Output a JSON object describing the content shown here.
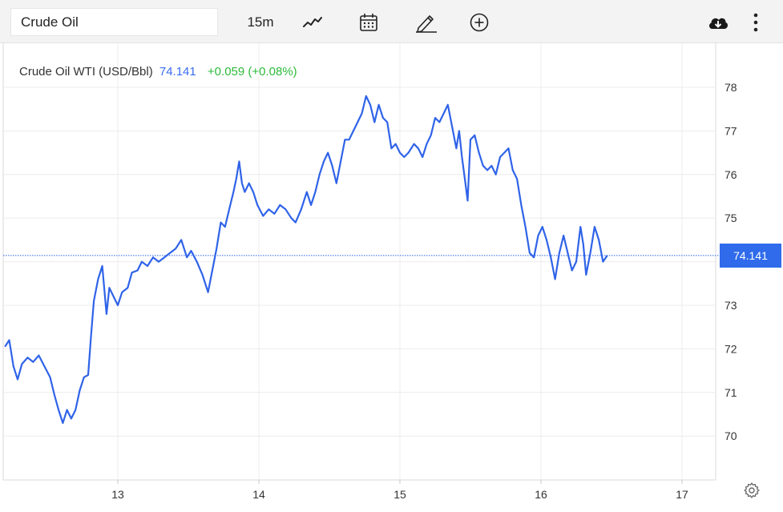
{
  "toolbar": {
    "search_value": "Crude Oil",
    "interval": "15m",
    "icons": [
      "line-chart-icon",
      "calendar-icon",
      "pencil-icon",
      "plus-circle-icon",
      "download-cloud-icon",
      "more-vertical-icon"
    ]
  },
  "legend": {
    "name": "Crude Oil WTI (USD/Bbl)",
    "price": "74.141",
    "change": "+0.059 (+0.08%)"
  },
  "colors": {
    "line": "#2f63e8",
    "change_up": "#2dba3a",
    "price_tag": "#2f6bea",
    "grid": "#ececec"
  },
  "chart_data": {
    "type": "line",
    "title": "",
    "xlabel": "",
    "ylabel": "",
    "x_ticks": [
      "13",
      "14",
      "15",
      "16",
      "17"
    ],
    "y_ticks": [
      "70",
      "71",
      "72",
      "73",
      "74",
      "75",
      "76",
      "77",
      "78"
    ],
    "xlim": [
      12.2,
      17.25
    ],
    "ylim": [
      69.0,
      79.0
    ],
    "grid": true,
    "last_value": 74.141,
    "last_value_label": "74.141",
    "series": [
      {
        "values": [
          [
            12.2,
            72.05
          ],
          [
            12.23,
            72.2
          ],
          [
            12.26,
            71.6
          ],
          [
            12.29,
            71.3
          ],
          [
            12.32,
            71.65
          ],
          [
            12.36,
            71.8
          ],
          [
            12.4,
            71.7
          ],
          [
            12.44,
            71.85
          ],
          [
            12.48,
            71.6
          ],
          [
            12.52,
            71.35
          ],
          [
            12.55,
            70.95
          ],
          [
            12.58,
            70.6
          ],
          [
            12.61,
            70.3
          ],
          [
            12.64,
            70.6
          ],
          [
            12.67,
            70.4
          ],
          [
            12.7,
            70.6
          ],
          [
            12.73,
            71.05
          ],
          [
            12.76,
            71.35
          ],
          [
            12.79,
            71.4
          ],
          [
            12.81,
            72.3
          ],
          [
            12.83,
            73.1
          ],
          [
            12.86,
            73.6
          ],
          [
            12.89,
            73.9
          ],
          [
            12.92,
            72.8
          ],
          [
            12.94,
            73.4
          ],
          [
            12.97,
            73.2
          ],
          [
            13.0,
            73.0
          ],
          [
            13.03,
            73.3
          ],
          [
            13.07,
            73.4
          ],
          [
            13.1,
            73.75
          ],
          [
            13.14,
            73.8
          ],
          [
            13.17,
            74.0
          ],
          [
            13.21,
            73.9
          ],
          [
            13.25,
            74.1
          ],
          [
            13.29,
            74.0
          ],
          [
            13.33,
            74.1
          ],
          [
            13.37,
            74.2
          ],
          [
            13.41,
            74.3
          ],
          [
            13.45,
            74.5
          ],
          [
            13.49,
            74.1
          ],
          [
            13.52,
            74.25
          ],
          [
            13.56,
            74.0
          ],
          [
            13.6,
            73.7
          ],
          [
            13.64,
            73.3
          ],
          [
            13.67,
            73.8
          ],
          [
            13.7,
            74.3
          ],
          [
            13.73,
            74.9
          ],
          [
            13.76,
            74.8
          ],
          [
            13.79,
            75.2
          ],
          [
            13.82,
            75.6
          ],
          [
            13.84,
            75.9
          ],
          [
            13.86,
            76.3
          ],
          [
            13.88,
            75.8
          ],
          [
            13.9,
            75.6
          ],
          [
            13.93,
            75.8
          ],
          [
            13.96,
            75.6
          ],
          [
            13.99,
            75.3
          ],
          [
            14.03,
            75.05
          ],
          [
            14.07,
            75.2
          ],
          [
            14.11,
            75.1
          ],
          [
            14.15,
            75.3
          ],
          [
            14.19,
            75.2
          ],
          [
            14.23,
            75.0
          ],
          [
            14.26,
            74.9
          ],
          [
            14.3,
            75.2
          ],
          [
            14.34,
            75.6
          ],
          [
            14.37,
            75.3
          ],
          [
            14.4,
            75.6
          ],
          [
            14.43,
            76.0
          ],
          [
            14.46,
            76.3
          ],
          [
            14.49,
            76.5
          ],
          [
            14.52,
            76.2
          ],
          [
            14.55,
            75.8
          ],
          [
            14.58,
            76.3
          ],
          [
            14.61,
            76.8
          ],
          [
            14.64,
            76.8
          ],
          [
            14.67,
            77.0
          ],
          [
            14.7,
            77.2
          ],
          [
            14.73,
            77.4
          ],
          [
            14.76,
            77.8
          ],
          [
            14.79,
            77.6
          ],
          [
            14.82,
            77.2
          ],
          [
            14.85,
            77.6
          ],
          [
            14.88,
            77.3
          ],
          [
            14.91,
            77.2
          ],
          [
            14.94,
            76.6
          ],
          [
            14.97,
            76.7
          ],
          [
            15.0,
            76.5
          ],
          [
            15.03,
            76.4
          ],
          [
            15.06,
            76.5
          ],
          [
            15.1,
            76.7
          ],
          [
            15.13,
            76.6
          ],
          [
            15.16,
            76.4
          ],
          [
            15.19,
            76.7
          ],
          [
            15.22,
            76.9
          ],
          [
            15.25,
            77.3
          ],
          [
            15.28,
            77.2
          ],
          [
            15.31,
            77.4
          ],
          [
            15.34,
            77.6
          ],
          [
            15.37,
            77.1
          ],
          [
            15.4,
            76.6
          ],
          [
            15.42,
            77.0
          ],
          [
            15.44,
            76.4
          ],
          [
            15.46,
            75.9
          ],
          [
            15.48,
            75.4
          ],
          [
            15.5,
            76.8
          ],
          [
            15.53,
            76.9
          ],
          [
            15.56,
            76.5
          ],
          [
            15.59,
            76.2
          ],
          [
            15.62,
            76.1
          ],
          [
            15.65,
            76.2
          ],
          [
            15.68,
            76.0
          ],
          [
            15.71,
            76.4
          ],
          [
            15.74,
            76.5
          ],
          [
            15.77,
            76.6
          ],
          [
            15.8,
            76.1
          ],
          [
            15.83,
            75.9
          ],
          [
            15.86,
            75.3
          ],
          [
            15.89,
            74.8
          ],
          [
            15.92,
            74.2
          ],
          [
            15.95,
            74.1
          ],
          [
            15.98,
            74.6
          ],
          [
            16.01,
            74.8
          ],
          [
            16.04,
            74.5
          ],
          [
            16.07,
            74.1
          ],
          [
            16.1,
            73.6
          ],
          [
            16.13,
            74.2
          ],
          [
            16.16,
            74.6
          ],
          [
            16.19,
            74.2
          ],
          [
            16.22,
            73.8
          ],
          [
            16.25,
            74.0
          ],
          [
            16.28,
            74.8
          ],
          [
            16.3,
            74.4
          ],
          [
            16.32,
            73.7
          ],
          [
            16.35,
            74.2
          ],
          [
            16.38,
            74.8
          ],
          [
            16.41,
            74.5
          ],
          [
            16.44,
            74.0
          ],
          [
            16.47,
            74.141
          ]
        ]
      }
    ]
  }
}
